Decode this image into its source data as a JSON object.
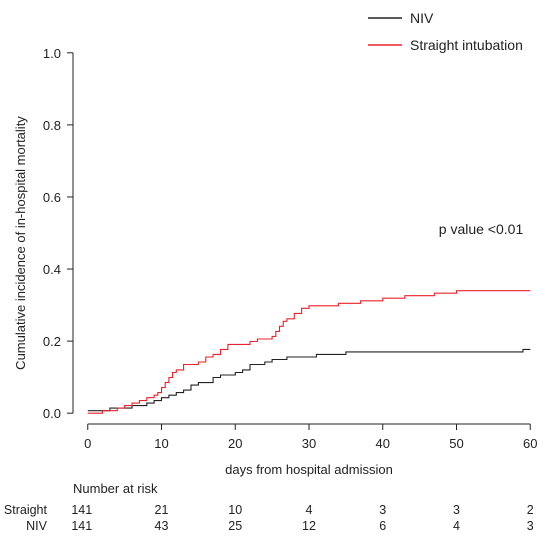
{
  "chart_data": {
    "type": "line",
    "step": true,
    "title": "",
    "xlabel": "days from hospital admission",
    "ylabel": "Cumulative incidence of in-hospital mortality",
    "xlim": [
      -2,
      62
    ],
    "ylim": [
      -0.03,
      1.03
    ],
    "x_ticks": [
      0,
      10,
      20,
      30,
      40,
      50,
      60
    ],
    "y_ticks": [
      0.0,
      0.2,
      0.4,
      0.6,
      0.8,
      1.0
    ],
    "x_tick_labels": [
      "0",
      "10",
      "20",
      "30",
      "40",
      "50",
      "60"
    ],
    "y_tick_labels": [
      "0.0",
      "0.2",
      "0.4",
      "0.6",
      "0.8",
      "1.0"
    ],
    "grid": false,
    "legend": {
      "placement": "top-right"
    },
    "annotation": "p value <0.01",
    "series": [
      {
        "name": "NIV",
        "color": "#222222",
        "points": [
          [
            0,
            0.007
          ],
          [
            3,
            0.014
          ],
          [
            6,
            0.021
          ],
          [
            8,
            0.028
          ],
          [
            9,
            0.035
          ],
          [
            10,
            0.043
          ],
          [
            11,
            0.05
          ],
          [
            12,
            0.057
          ],
          [
            13,
            0.064
          ],
          [
            14,
            0.078
          ],
          [
            15,
            0.085
          ],
          [
            17,
            0.099
          ],
          [
            18,
            0.106
          ],
          [
            20,
            0.113
          ],
          [
            21,
            0.12
          ],
          [
            22,
            0.135
          ],
          [
            24,
            0.142
          ],
          [
            25,
            0.149
          ],
          [
            27,
            0.156
          ],
          [
            31,
            0.163
          ],
          [
            35,
            0.17
          ],
          [
            59,
            0.177
          ],
          [
            60,
            0.177
          ]
        ]
      },
      {
        "name": "Straight intubation",
        "color": "#e8232a",
        "points": [
          [
            0,
            0.0
          ],
          [
            2,
            0.007
          ],
          [
            4,
            0.014
          ],
          [
            5,
            0.021
          ],
          [
            6,
            0.028
          ],
          [
            7,
            0.035
          ],
          [
            8,
            0.043
          ],
          [
            9,
            0.05
          ],
          [
            9.5,
            0.057
          ],
          [
            10,
            0.071
          ],
          [
            10.5,
            0.085
          ],
          [
            11,
            0.099
          ],
          [
            11.5,
            0.113
          ],
          [
            12,
            0.12
          ],
          [
            13,
            0.135
          ],
          [
            15,
            0.142
          ],
          [
            16,
            0.156
          ],
          [
            17,
            0.163
          ],
          [
            18,
            0.177
          ],
          [
            19,
            0.191
          ],
          [
            22,
            0.199
          ],
          [
            23,
            0.206
          ],
          [
            25,
            0.213
          ],
          [
            25.5,
            0.227
          ],
          [
            26,
            0.241
          ],
          [
            26.5,
            0.255
          ],
          [
            27,
            0.262
          ],
          [
            28,
            0.277
          ],
          [
            29,
            0.291
          ],
          [
            30,
            0.298
          ],
          [
            34,
            0.305
          ],
          [
            37,
            0.312
          ],
          [
            40,
            0.319
          ],
          [
            43,
            0.326
          ],
          [
            47,
            0.333
          ],
          [
            50,
            0.34
          ],
          [
            60,
            0.34
          ]
        ]
      }
    ],
    "risk_table": {
      "title": "Number at risk",
      "rows": [
        {
          "label": "Straight",
          "values": [
            "141",
            "21",
            "10",
            "4",
            "3",
            "3",
            "2"
          ]
        },
        {
          "label": "NIV",
          "values": [
            "141",
            "43",
            "25",
            "12",
            "6",
            "4",
            "3"
          ]
        }
      ]
    }
  }
}
